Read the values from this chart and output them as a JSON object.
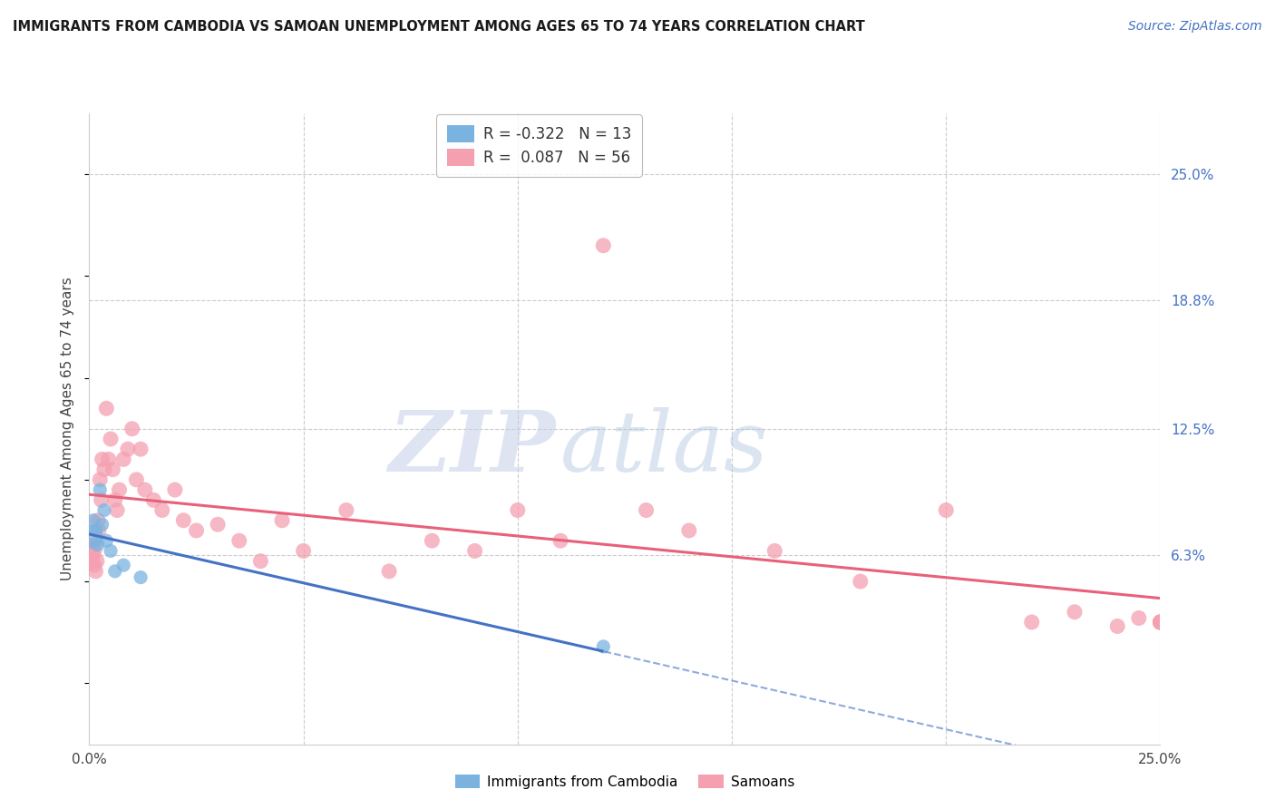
{
  "title": "IMMIGRANTS FROM CAMBODIA VS SAMOAN UNEMPLOYMENT AMONG AGES 65 TO 74 YEARS CORRELATION CHART",
  "source": "Source: ZipAtlas.com",
  "ylabel": "Unemployment Among Ages 65 to 74 years",
  "ytick_values": [
    6.3,
    12.5,
    18.8,
    25.0
  ],
  "xlim": [
    0,
    25
  ],
  "ylim": [
    -3,
    28
  ],
  "color_cambodia": "#7ab3e0",
  "color_samoan": "#f4a0b0",
  "line_color_cambodia": "#4472c4",
  "line_color_samoan": "#e8607a",
  "cambodia_x": [
    0.05,
    0.1,
    0.15,
    0.2,
    0.25,
    0.3,
    0.35,
    0.4,
    0.5,
    0.6,
    0.8,
    1.2,
    12.0
  ],
  "cambodia_y": [
    7.2,
    8.0,
    7.5,
    6.8,
    9.5,
    7.8,
    8.5,
    7.0,
    6.5,
    5.5,
    5.8,
    5.2,
    1.8
  ],
  "cambodia_sizes_raw": [
    350,
    120,
    120,
    120,
    120,
    120,
    120,
    120,
    120,
    120,
    120,
    120,
    120
  ],
  "samoan_x": [
    0.02,
    0.05,
    0.08,
    0.1,
    0.12,
    0.15,
    0.18,
    0.2,
    0.22,
    0.25,
    0.28,
    0.3,
    0.35,
    0.4,
    0.45,
    0.5,
    0.55,
    0.6,
    0.65,
    0.7,
    0.8,
    0.9,
    1.0,
    1.1,
    1.2,
    1.3,
    1.5,
    1.7,
    2.0,
    2.2,
    2.5,
    3.0,
    3.5,
    4.0,
    4.5,
    5.0,
    6.0,
    7.0,
    8.0,
    9.0,
    10.0,
    11.0,
    12.0,
    13.0,
    14.0,
    16.0,
    18.0,
    20.0,
    22.0,
    23.0,
    24.0,
    24.5,
    25.0,
    25.0,
    25.0,
    25.0
  ],
  "samoan_y": [
    6.5,
    6.0,
    6.3,
    6.8,
    5.8,
    5.5,
    6.0,
    8.0,
    7.5,
    10.0,
    9.0,
    11.0,
    10.5,
    13.5,
    11.0,
    12.0,
    10.5,
    9.0,
    8.5,
    9.5,
    11.0,
    11.5,
    12.5,
    10.0,
    11.5,
    9.5,
    9.0,
    8.5,
    9.5,
    8.0,
    7.5,
    7.8,
    7.0,
    6.0,
    8.0,
    6.5,
    8.5,
    5.5,
    7.0,
    6.5,
    8.5,
    7.0,
    21.5,
    8.5,
    7.5,
    6.5,
    5.0,
    8.5,
    3.0,
    3.5,
    2.8,
    3.2,
    3.0,
    3.0,
    3.0,
    3.0
  ],
  "samoan_sizes_raw": [
    350,
    200,
    150,
    150,
    150,
    150,
    150,
    150,
    150,
    150,
    150,
    150,
    150,
    150,
    150,
    150,
    150,
    150,
    150,
    150,
    150,
    150,
    150,
    150,
    150,
    150,
    150,
    150,
    150,
    150,
    150,
    150,
    150,
    150,
    150,
    150,
    150,
    150,
    150,
    150,
    150,
    150,
    150,
    150,
    150,
    150,
    150,
    150,
    150,
    150,
    150,
    150,
    150,
    150,
    150,
    150
  ]
}
